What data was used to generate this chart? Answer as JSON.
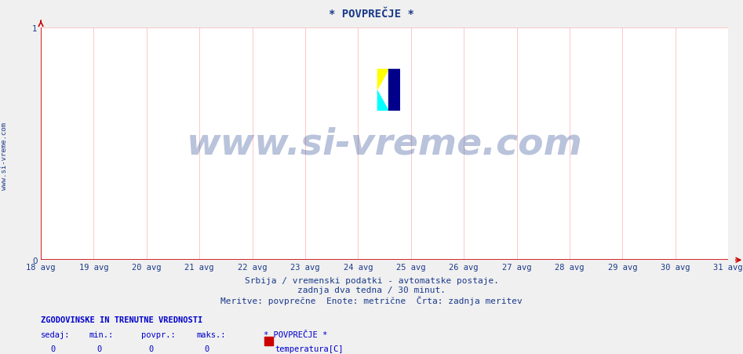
{
  "title": "* POVPREČJE *",
  "title_color": "#1a3a8a",
  "title_fontsize": 10,
  "bg_color": "#f0f0f0",
  "plot_bg_color": "#ffffff",
  "x_min": 0,
  "x_max": 13,
  "y_min": 0,
  "y_max": 1,
  "x_tick_labels": [
    "18 avg",
    "19 avg",
    "20 avg",
    "21 avg",
    "22 avg",
    "23 avg",
    "24 avg",
    "25 avg",
    "26 avg",
    "27 avg",
    "28 avg",
    "29 avg",
    "30 avg",
    "31 avg"
  ],
  "x_tick_positions": [
    0,
    1,
    2,
    3,
    4,
    5,
    6,
    7,
    8,
    9,
    10,
    11,
    12,
    13
  ],
  "y_tick_labels": [
    "0",
    "1"
  ],
  "y_tick_positions": [
    0,
    1
  ],
  "axis_color": "#cc0000",
  "grid_color": "#ffb0b0",
  "tick_label_color": "#1a3a8a",
  "tick_fontsize": 7.5,
  "subtitle1": "Srbija / vremenski podatki - avtomatske postaje.",
  "subtitle2": "zadnja dva tedna / 30 minut.",
  "subtitle3": "Meritve: povprečne  Enote: metrične  Črta: zadnja meritev",
  "subtitle_color": "#1a3a8a",
  "subtitle_fontsize": 8,
  "watermark_text": "www.si-vreme.com",
  "watermark_color": "#1a3a8a",
  "watermark_fontsize": 34,
  "watermark_alpha": 0.3,
  "side_text": "www.si-vreme.com",
  "side_text_color": "#1a3a8a",
  "side_text_fontsize": 6.5,
  "footer_header": "ZGODOVINSKE IN TRENUTNE VREDNOSTI",
  "footer_header_color": "#0000cc",
  "footer_header_fontsize": 7.5,
  "footer_col_labels": [
    "sedaj:",
    "min.:",
    "povpr.:",
    "maks.:",
    "* POVPREČJE *"
  ],
  "footer_col_values": [
    "0",
    "0",
    "0",
    "0"
  ],
  "footer_legend_label": "temperatura[C]",
  "footer_legend_color": "#cc0000",
  "logo_yellow": "#ffff00",
  "logo_cyan": "#00ffff",
  "logo_navy": "#00008b"
}
